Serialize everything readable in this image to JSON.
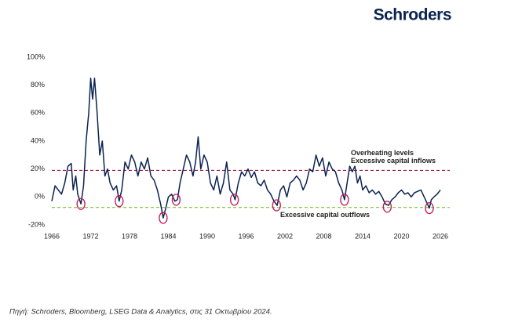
{
  "brand": "Schroders",
  "source": "Πηγή: Schroders, Bloomberg, LSEG Data & Analytics, στις 31 Οκτωβρίου 2024.",
  "chart_data": {
    "type": "line",
    "x": [
      1966,
      1966.5,
      1967,
      1967.5,
      1968,
      1968.5,
      1969,
      1969.3,
      1969.7,
      1970,
      1970.5,
      1970.9,
      1971.3,
      1971.7,
      1972,
      1972.3,
      1972.6,
      1973,
      1973.4,
      1973.8,
      1974.2,
      1974.6,
      1975,
      1975.5,
      1976,
      1976.4,
      1976.8,
      1977.3,
      1977.8,
      1978.3,
      1978.8,
      1979.3,
      1979.8,
      1980.3,
      1980.8,
      1981.3,
      1981.8,
      1982.3,
      1982.8,
      1983.2,
      1983.6,
      1984,
      1984.5,
      1985,
      1985.4,
      1985.8,
      1986.3,
      1986.8,
      1987.3,
      1987.8,
      1988.2,
      1988.6,
      1989,
      1989.5,
      1990,
      1990.5,
      1991,
      1991.5,
      1992,
      1992.5,
      1993,
      1993.5,
      1994,
      1994.3,
      1994.8,
      1995.3,
      1995.8,
      1996.3,
      1996.8,
      1997.3,
      1997.8,
      1998.3,
      1998.8,
      1999.3,
      1999.8,
      2000.3,
      2000.8,
      2001.3,
      2001.8,
      2002.3,
      2002.8,
      2003.3,
      2003.8,
      2004.3,
      2004.8,
      2005.3,
      2005.8,
      2006.3,
      2006.8,
      2007.3,
      2007.8,
      2008.3,
      2008.8,
      2009.3,
      2009.8,
      2010.3,
      2010.8,
      2011.2,
      2011.6,
      2012,
      2012.4,
      2012.8,
      2013.2,
      2013.6,
      2014,
      2014.5,
      2015,
      2015.5,
      2016,
      2016.5,
      2017,
      2017.5,
      2018,
      2018.5,
      2019,
      2019.5,
      2020,
      2020.5,
      2021,
      2021.5,
      2022,
      2022.5,
      2023,
      2023.5,
      2024,
      2024.3,
      2024.6,
      2025,
      2025.5,
      2026
    ],
    "series": [
      {
        "color": "#0b2350",
        "values": [
          -3,
          8,
          5,
          2,
          10,
          22,
          24,
          5,
          15,
          2,
          -5,
          8,
          40,
          60,
          85,
          70,
          85,
          60,
          30,
          40,
          15,
          20,
          10,
          5,
          8,
          -3,
          5,
          25,
          20,
          30,
          25,
          15,
          25,
          20,
          28,
          15,
          12,
          5,
          -5,
          -15,
          -8,
          0,
          2,
          -3,
          -2,
          10,
          20,
          30,
          25,
          15,
          25,
          43,
          20,
          30,
          25,
          10,
          5,
          15,
          2,
          10,
          25,
          5,
          2,
          -2,
          10,
          18,
          15,
          20,
          14,
          18,
          10,
          8,
          12,
          5,
          2,
          -3,
          -6,
          5,
          8,
          0,
          10,
          12,
          15,
          12,
          5,
          10,
          20,
          18,
          30,
          22,
          28,
          15,
          25,
          20,
          18,
          10,
          5,
          -2,
          10,
          22,
          18,
          22,
          10,
          15,
          5,
          8,
          3,
          5,
          2,
          4,
          0,
          -5,
          -6,
          -2,
          0,
          3,
          5,
          2,
          3,
          0,
          3,
          4,
          5,
          0,
          -5,
          -8,
          -2,
          0,
          2,
          5
        ]
      }
    ],
    "highlights": {
      "color": "#c0185a",
      "x": [
        1970.5,
        1976.4,
        1983.2,
        1985.2,
        1994.2,
        2000.7,
        2011.2,
        2017.8,
        2024.3
      ],
      "y": [
        -5,
        -3,
        -15,
        -2,
        -2,
        -6,
        -2,
        -7,
        -8
      ]
    },
    "reference_lines": [
      {
        "value": 19,
        "color": "#a3123f",
        "label_lines": [
          "Overheating levels",
          "Excessive capital inflows"
        ]
      },
      {
        "value": -7.5,
        "color": "#7cbf3a",
        "label_lines": [
          "Excessive capital outflows"
        ]
      }
    ],
    "xlim": [
      1966,
      2026
    ],
    "xticks": [
      1966,
      1972,
      1978,
      1984,
      1990,
      1996,
      2002,
      2008,
      2014,
      2020,
      2026
    ],
    "ylim": [
      -20,
      100
    ],
    "yticks": [
      {
        "value": 100,
        "label": "100%"
      },
      {
        "value": 80,
        "label": "80%"
      },
      {
        "value": 60,
        "label": "60%"
      },
      {
        "value": 40,
        "label": "40%"
      },
      {
        "value": 20,
        "label": "20%"
      },
      {
        "value": 0,
        "label": "0%"
      },
      {
        "value": -20,
        "label": "-20%"
      }
    ],
    "grid": false
  }
}
